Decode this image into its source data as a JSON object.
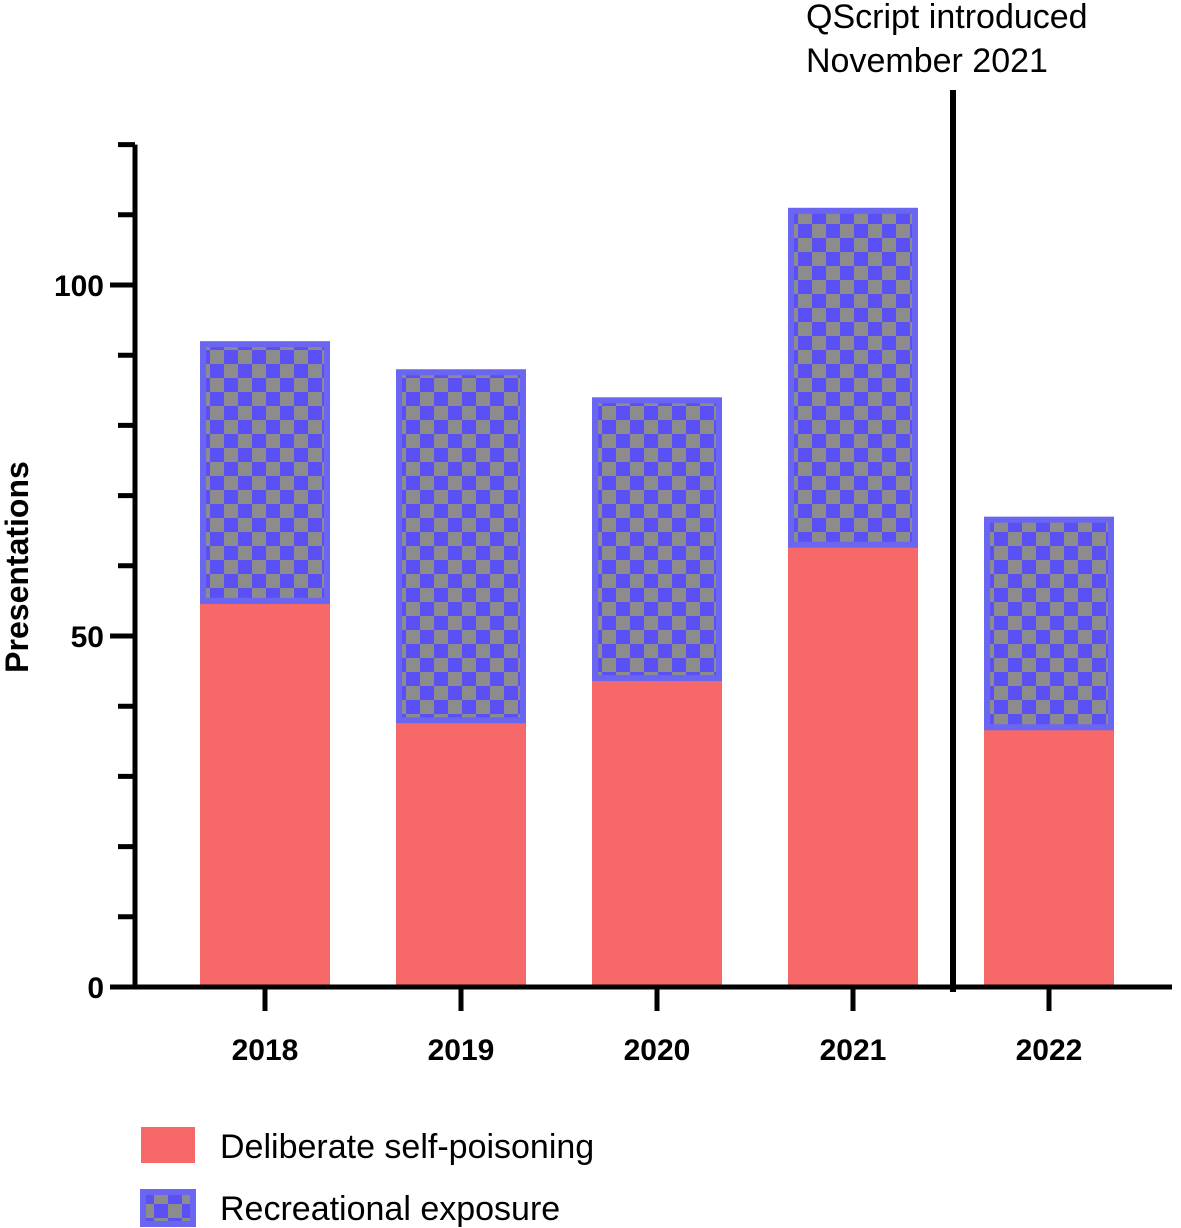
{
  "chart_data": {
    "type": "bar",
    "stacked": true,
    "categories": [
      "2018",
      "2019",
      "2020",
      "2021",
      "2022"
    ],
    "series": [
      {
        "name": "Deliberate self-poisoning",
        "values": [
          55,
          38,
          44,
          63,
          37
        ],
        "color": "#f76868"
      },
      {
        "name": "Recreational exposure",
        "values": [
          37,
          50,
          40,
          48,
          30
        ],
        "color": "#5a50f5",
        "pattern_color": "#8c8c8c",
        "border_color": "#6a66f2"
      }
    ],
    "title": "",
    "xlabel": "",
    "ylabel": "Presentations",
    "ylim": [
      0,
      120
    ],
    "major_ticks": [
      0,
      50,
      100
    ],
    "minor_ticks": [
      10,
      20,
      30,
      40,
      60,
      70,
      80,
      90,
      110,
      120
    ],
    "annotation": {
      "line1": "QScript introduced",
      "line2": "November 2021",
      "between": [
        "2021",
        "2022"
      ]
    },
    "legend_position": "bottom-left"
  }
}
